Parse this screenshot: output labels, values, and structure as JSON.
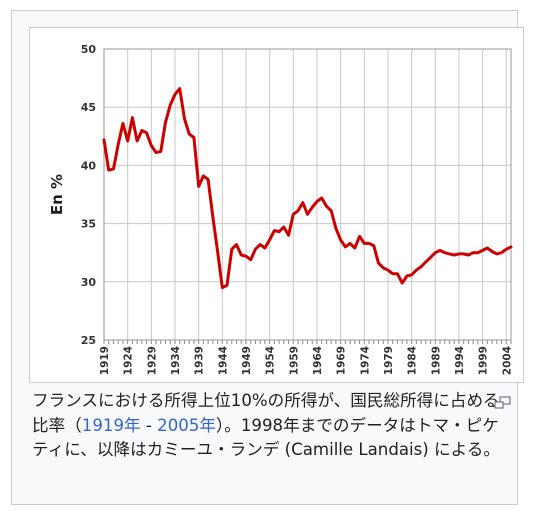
{
  "chart_data": {
    "type": "line",
    "title": "",
    "xlabel": "",
    "ylabel": "En %",
    "ylim": [
      25,
      50
    ],
    "yticks": [
      25,
      30,
      35,
      40,
      45,
      50
    ],
    "xticks": [
      "1919",
      "1924",
      "1929",
      "1934",
      "1939",
      "1944",
      "1949",
      "1954",
      "1959",
      "1964",
      "1969",
      "1974",
      "1979",
      "1984",
      "1989",
      "1994",
      "1999",
      "2004"
    ],
    "grid": true,
    "legend": "none",
    "line_color": "#cc0000",
    "series": [
      {
        "x": [
          1919,
          1920,
          1921,
          1922,
          1923,
          1924,
          1925,
          1926,
          1927,
          1928,
          1929,
          1930,
          1931,
          1932,
          1933,
          1934,
          1935,
          1936,
          1937,
          1938,
          1939,
          1940,
          1941,
          1942,
          1943,
          1944,
          1945,
          1946,
          1947,
          1948,
          1949,
          1950,
          1951,
          1952,
          1953,
          1954,
          1955,
          1956,
          1957,
          1958,
          1959,
          1960,
          1961,
          1962,
          1963,
          1964,
          1965,
          1966,
          1967,
          1968,
          1969,
          1970,
          1971,
          1972,
          1973,
          1974,
          1975,
          1976,
          1977,
          1978,
          1979,
          1980,
          1981,
          1982,
          1983,
          1984,
          1985,
          1986,
          1987,
          1988,
          1989,
          1990,
          1991,
          1992,
          1993,
          1994,
          1995,
          1996,
          1997,
          1998,
          1999,
          2000,
          2001,
          2002,
          2003,
          2004,
          2005
        ],
        "values": [
          42.2,
          39.6,
          39.7,
          41.8,
          43.6,
          42.1,
          44.1,
          42.1,
          43.0,
          42.8,
          41.7,
          41.1,
          41.2,
          43.7,
          45.2,
          46.1,
          46.6,
          44.0,
          42.7,
          42.4,
          38.2,
          39.1,
          38.8,
          35.6,
          32.6,
          29.5,
          29.7,
          32.8,
          33.2,
          32.3,
          32.2,
          31.9,
          32.8,
          33.2,
          32.9,
          33.6,
          34.4,
          34.3,
          34.7,
          34.0,
          35.8,
          36.1,
          36.8,
          35.8,
          36.4,
          36.9,
          37.2,
          36.5,
          36.1,
          34.6,
          33.6,
          33.0,
          33.3,
          32.9,
          33.9,
          33.3,
          33.3,
          33.1,
          31.6,
          31.2,
          31.0,
          30.7,
          30.7,
          29.9,
          30.5,
          30.6,
          31.0,
          31.3,
          31.7,
          32.1,
          32.5,
          32.7,
          32.5,
          32.4,
          32.3,
          32.4,
          32.4,
          32.3,
          32.5,
          32.5,
          32.7,
          32.9,
          32.6,
          32.4,
          32.5,
          32.8,
          33.0
        ]
      }
    ]
  },
  "caption": {
    "text_1": "フランスにおける所得上位10%の所得が、国民総所得に占める比率（",
    "link_1": "1919年",
    "text_2": " - ",
    "link_2": "2005年",
    "text_3": "）。1998年までのデータはトマ・ピケティに、以降はカミーユ・ランデ (Camille Landais) による。"
  },
  "icons": {
    "magnify": "magnify-clip-icon"
  }
}
